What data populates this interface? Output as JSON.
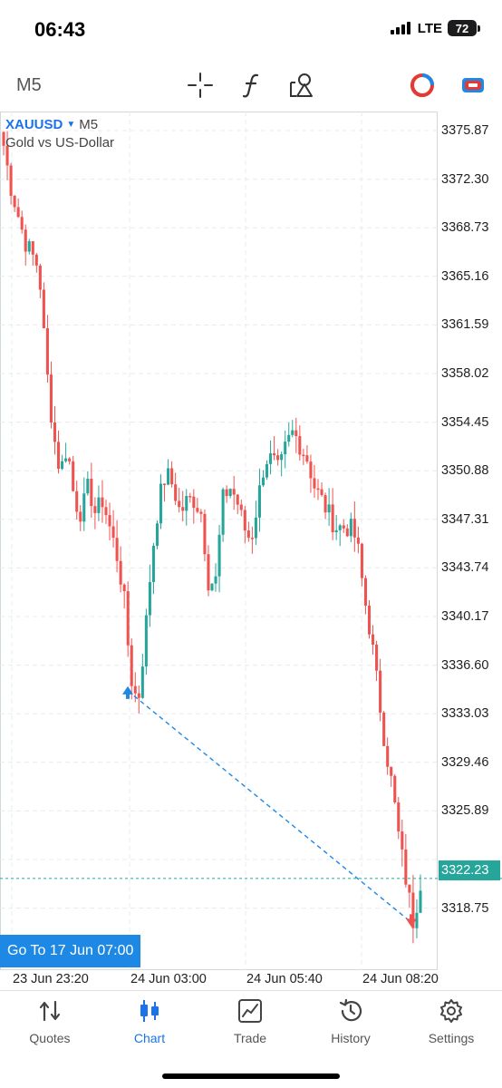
{
  "status_bar": {
    "time": "06:43",
    "network": "LTE",
    "battery": "72"
  },
  "toolbar": {
    "timeframe": "M5",
    "icons": [
      "crosshair-icon",
      "function-icon",
      "objects-icon",
      "color-wheel-icon",
      "account-icon"
    ]
  },
  "chart": {
    "symbol": "XAUUSD",
    "timeframe": "M5",
    "description": "Gold vs US-Dollar",
    "goto_label": "Go To 17 Jun 07:00",
    "current_price": "3322.23",
    "price_labels": [
      "3375.87",
      "3372.30",
      "3368.73",
      "3365.16",
      "3361.59",
      "3358.02",
      "3354.45",
      "3350.88",
      "3347.31",
      "3343.74",
      "3340.17",
      "3336.60",
      "3333.03",
      "3329.46",
      "3325.89",
      "3318.75"
    ],
    "time_labels": [
      "23 Jun 23:20",
      "24 Jun 03:00",
      "24 Jun 05:40",
      "24 Jun 08:20"
    ],
    "colors": {
      "bull": "#26a69a",
      "bear": "#ef5350",
      "line": "#1e88e5",
      "current": "#26a69a"
    }
  },
  "chart_data": {
    "type": "candlestick",
    "title": "XAUUSD, M5 — Gold vs US-Dollar",
    "ylim": [
      3315.5,
      3378.5
    ],
    "x": [
      "23 Jun 23:20",
      "24 Jun 03:00",
      "24 Jun 05:40",
      "24 Jun 08:20"
    ],
    "close_path": [
      3376,
      3373,
      3371,
      3369,
      3368,
      3367,
      3360,
      3355,
      3352,
      3354,
      3350,
      3349,
      3351,
      3349,
      3350,
      3348,
      3346,
      3343,
      3337,
      3335,
      3340,
      3346,
      3350,
      3352,
      3351,
      3349,
      3350,
      3350,
      3349,
      3344,
      3344,
      3350,
      3351,
      3350,
      3348,
      3347,
      3350,
      3353,
      3353,
      3352,
      3354,
      3355,
      3354,
      3353,
      3351,
      3350,
      3349,
      3348,
      3348,
      3348,
      3347,
      3343,
      3340,
      3336,
      3332,
      3329,
      3325,
      3322,
      3319,
      3322
    ],
    "current_price": 3322.23,
    "trade_markers": [
      {
        "type": "buy",
        "price": 3336.0
      },
      {
        "type": "sell",
        "price": 3319.0
      }
    ],
    "grid": true
  },
  "tabs": [
    {
      "label": "Quotes",
      "icon": "quotes-icon",
      "active": false
    },
    {
      "label": "Chart",
      "icon": "chart-icon",
      "active": true
    },
    {
      "label": "Trade",
      "icon": "trade-icon",
      "active": false
    },
    {
      "label": "History",
      "icon": "history-icon",
      "active": false
    },
    {
      "label": "Settings",
      "icon": "settings-icon",
      "active": false
    }
  ]
}
